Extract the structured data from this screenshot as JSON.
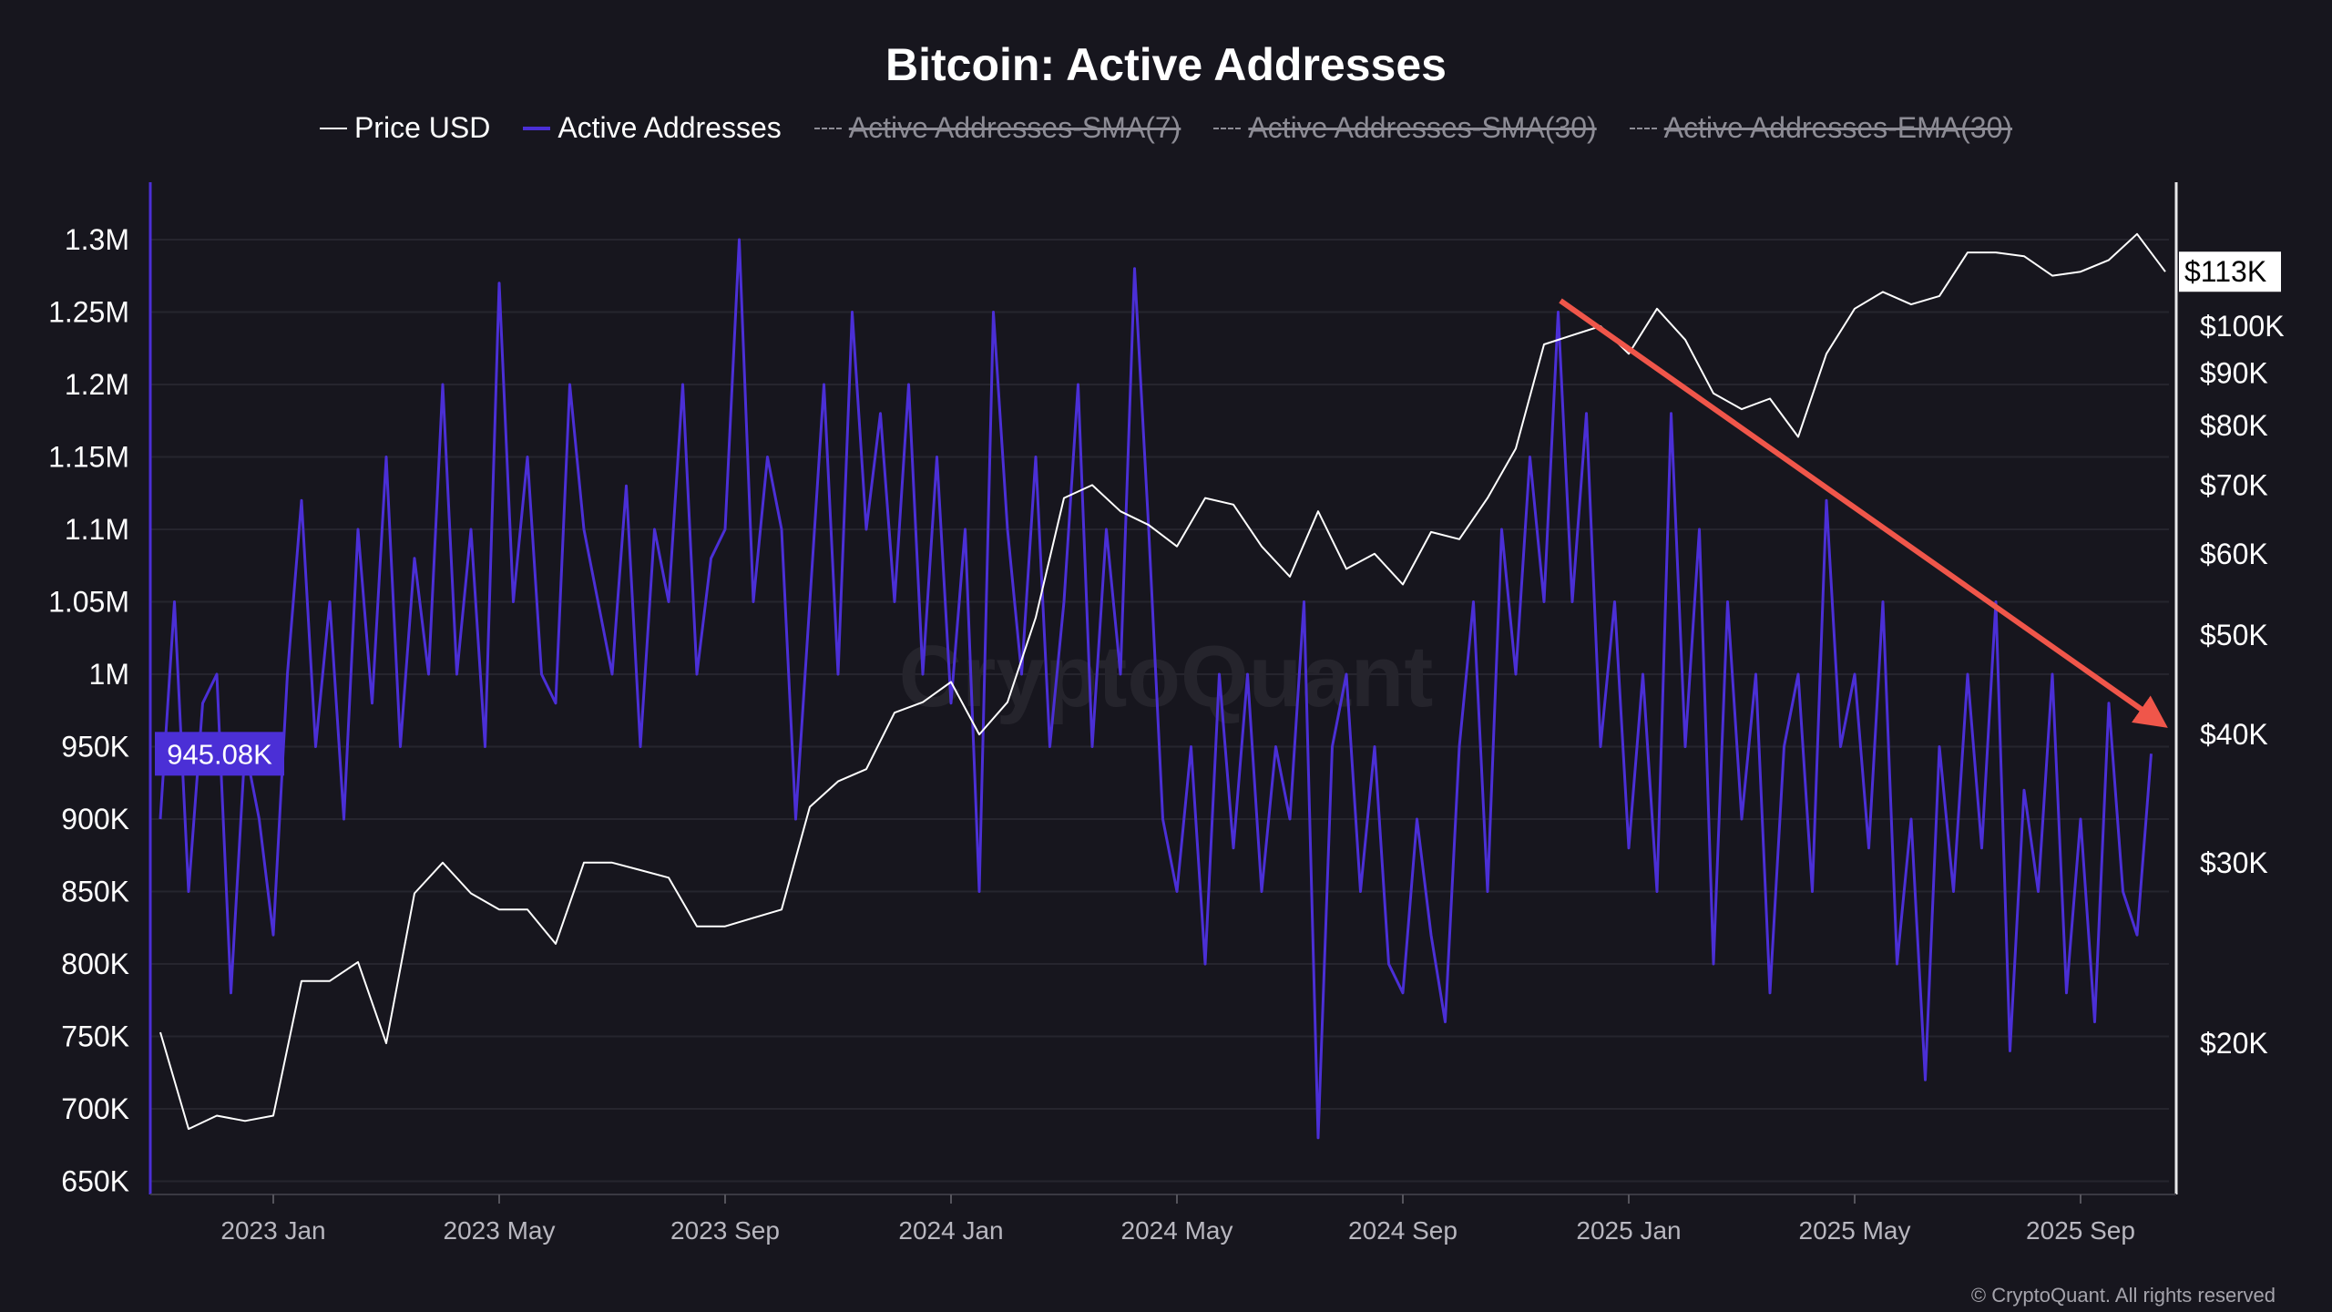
{
  "chart_data": {
    "type": "line",
    "title": "Bitcoin: Active Addresses",
    "legend": [
      {
        "label": "Price USD",
        "color": "#ffffff",
        "enabled": true
      },
      {
        "label": "Active Addresses",
        "color": "#4b2fd6",
        "enabled": true
      },
      {
        "label": "Active Addresses-SMA(7)",
        "color": "#8d8c95",
        "enabled": false
      },
      {
        "label": "Active Addresses-SMA(30)",
        "color": "#8d8c95",
        "enabled": false
      },
      {
        "label": "Active Addresses-EMA(30)",
        "color": "#8d8c95",
        "enabled": false
      }
    ],
    "legend_position": "top-center",
    "x_ticks": [
      "2023 Jan",
      "2023 May",
      "2023 Sep",
      "2024 Jan",
      "2024 May",
      "2024 Sep",
      "2025 Jan",
      "2025 May",
      "2025 Sep"
    ],
    "x_range": [
      "2022-11",
      "2025-10"
    ],
    "left_axis": {
      "label": "Active Addresses",
      "ylim": [
        640000,
        1340000
      ],
      "ticks": [
        "1.3M",
        "1.25M",
        "1.2M",
        "1.15M",
        "1.1M",
        "1.05M",
        "1M",
        "950K",
        "900K",
        "850K",
        "800K",
        "750K",
        "700K",
        "650K"
      ],
      "tick_values": [
        1300000,
        1250000,
        1200000,
        1150000,
        1100000,
        1050000,
        1000000,
        950000,
        900000,
        850000,
        800000,
        750000,
        700000,
        650000
      ],
      "current_label": "945.08K",
      "current_value": 945080
    },
    "right_axis": {
      "label": "Price USD",
      "scale": "log",
      "ticks": [
        "$100K",
        "$90K",
        "$80K",
        "$70K",
        "$60K",
        "$50K",
        "$40K",
        "$30K",
        "$20K"
      ],
      "tick_values": [
        100000,
        90000,
        80000,
        70000,
        60000,
        50000,
        40000,
        30000,
        20000
      ],
      "current_label": "$113K",
      "current_value": 113000
    },
    "series": [
      {
        "name": "Active Addresses",
        "step_months": 0.25,
        "start": "2022-11",
        "values": [
          900,
          1050,
          850,
          980,
          1000,
          780,
          950,
          900,
          820,
          1000,
          1120,
          950,
          1050,
          900,
          1100,
          980,
          1150,
          950,
          1080,
          1000,
          1200,
          1000,
          1100,
          950,
          1270,
          1050,
          1150,
          1000,
          980,
          1200,
          1100,
          1050,
          1000,
          1130,
          950,
          1100,
          1050,
          1200,
          1000,
          1080,
          1100,
          1300,
          1050,
          1150,
          1100,
          900,
          1050,
          1200,
          1000,
          1250,
          1100,
          1180,
          1050,
          1200,
          1000,
          1150,
          980,
          1100,
          850,
          1250,
          1100,
          1000,
          1150,
          950,
          1050,
          1200,
          950,
          1100,
          1000,
          1280,
          1100,
          900,
          850,
          950,
          800,
          1000,
          880,
          1000,
          850,
          950,
          900,
          1050,
          680,
          950,
          1000,
          850,
          950,
          800,
          780,
          900,
          820,
          760,
          950,
          1050,
          850,
          1100,
          1000,
          1150,
          1050,
          1250,
          1050,
          1180,
          950,
          1050,
          880,
          1000,
          850,
          1180,
          950,
          1100,
          800,
          1050,
          900,
          1000,
          780,
          950,
          1000,
          850,
          1120,
          950,
          1000,
          880,
          1050,
          800,
          900,
          720,
          950,
          850,
          1000,
          880,
          1050,
          740,
          920,
          850,
          1000,
          780,
          900,
          760,
          980,
          850,
          820,
          945.08
        ],
        "unit": "thousands"
      },
      {
        "name": "Price USD",
        "step_months": 0.5,
        "start": "2022-11",
        "values": [
          20.5,
          16.5,
          17,
          16.8,
          17,
          23,
          23,
          24,
          20,
          28,
          30,
          28,
          27,
          27,
          25,
          30,
          30,
          29.5,
          29,
          26,
          26,
          26.5,
          27,
          34,
          36,
          37,
          42,
          43,
          45,
          40,
          43,
          52,
          68,
          70,
          66,
          64,
          61,
          68,
          67,
          61,
          57,
          66,
          58,
          60,
          56,
          63,
          62,
          68,
          76,
          96,
          98,
          100,
          94,
          104,
          97,
          86,
          83,
          85,
          78,
          94,
          104,
          108,
          105,
          107,
          118,
          118,
          117,
          112,
          113,
          116,
          123,
          113
        ],
        "unit": "thousands USD"
      }
    ],
    "annotations": [
      {
        "type": "arrow",
        "color": "#f0564a",
        "from": [
          "2024-11-15",
          1255000
        ],
        "to": [
          "2025-10-15",
          925000
        ],
        "meaning": "downtrend"
      }
    ],
    "watermark": "CryptoQuant",
    "grid": true
  },
  "footer": {
    "copyright": "© CryptoQuant. All rights reserved"
  }
}
